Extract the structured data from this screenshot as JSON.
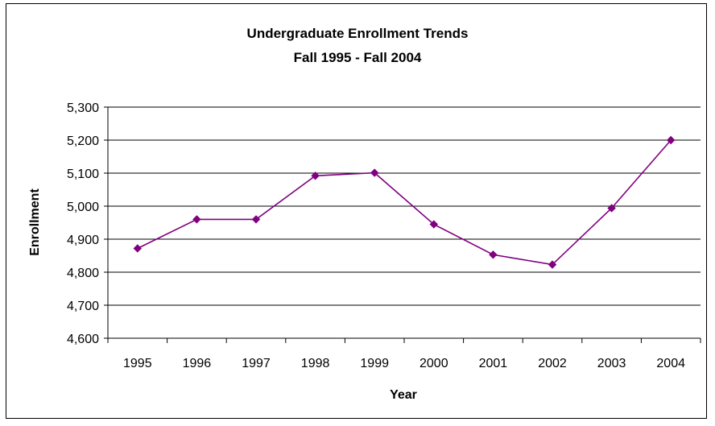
{
  "chart_data": {
    "type": "line",
    "title": "Undergraduate Enrollment Trends",
    "subtitle": "Fall 1995 - Fall 2004",
    "xlabel": "Year",
    "ylabel": "Enrollment",
    "categories": [
      "1995",
      "1996",
      "1997",
      "1998",
      "1999",
      "2000",
      "2001",
      "2002",
      "2003",
      "2004"
    ],
    "series": [
      {
        "values": [
          4872,
          4960,
          4960,
          5092,
          5101,
          4945,
          4853,
          4823,
          4994,
          5200
        ]
      }
    ],
    "ylim": [
      4600,
      5300
    ],
    "yticks": [
      4600,
      4700,
      4800,
      4900,
      5000,
      5100,
      5200,
      5300
    ],
    "ytick_labels": [
      "4,600",
      "4,700",
      "4,800",
      "4,900",
      "5,000",
      "5,100",
      "5,200",
      "5,300"
    ],
    "grid": true,
    "line_color": "#800080",
    "marker": "diamond"
  }
}
